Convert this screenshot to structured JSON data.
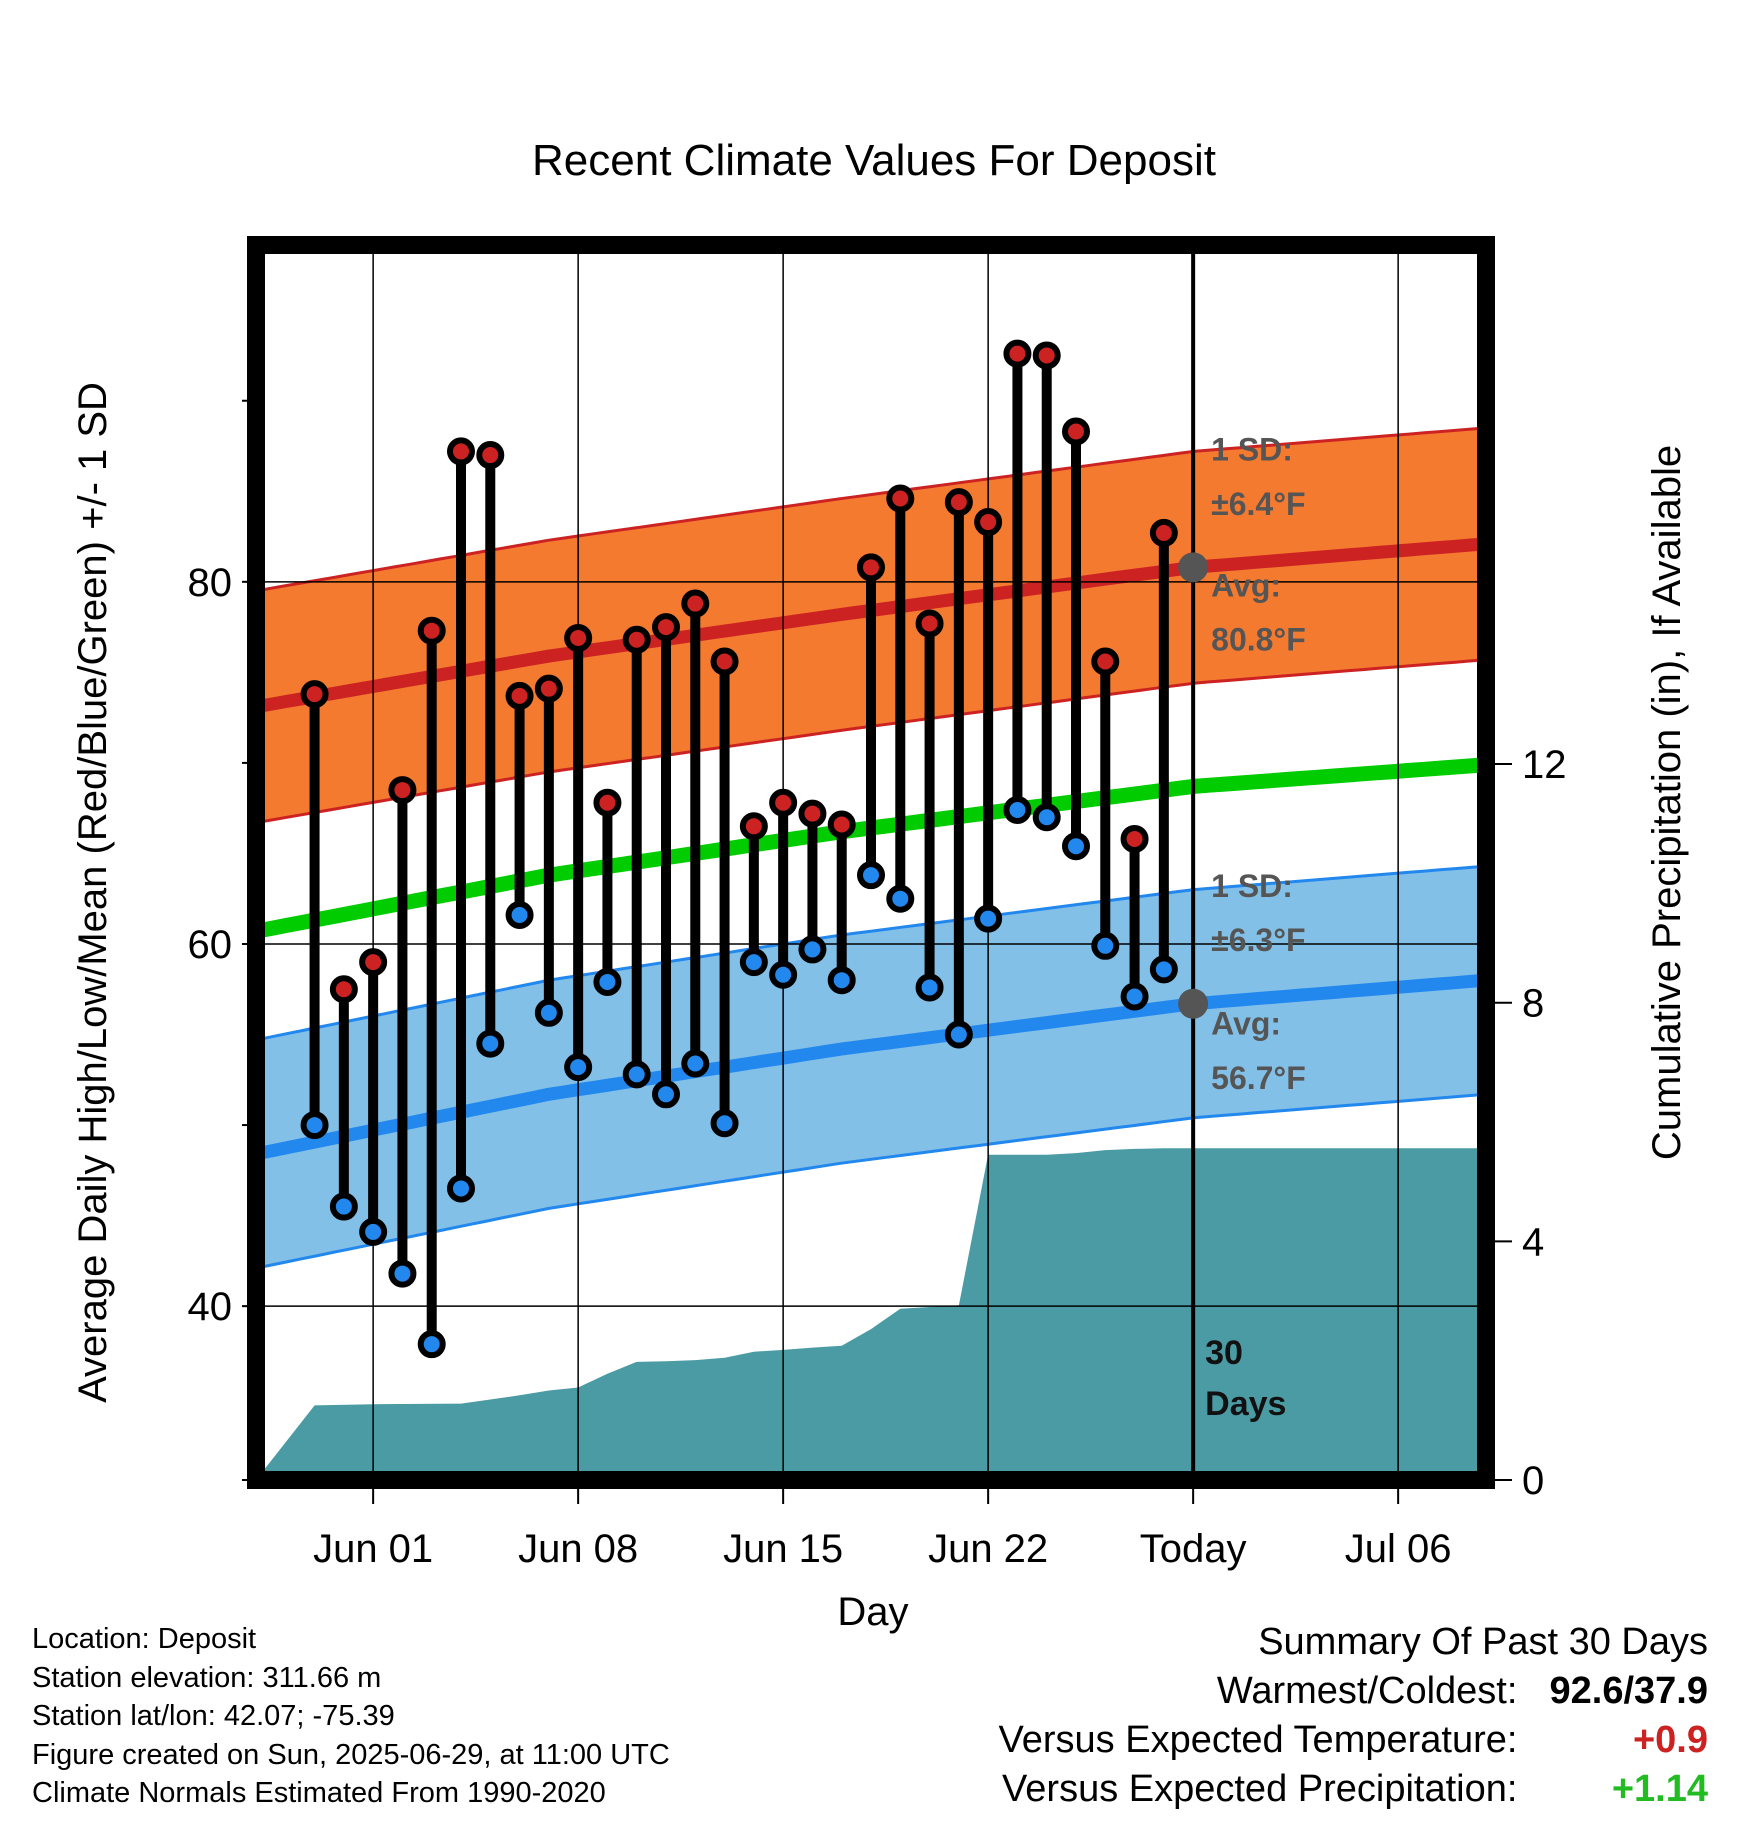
{
  "chart_data": {
    "type": "line",
    "title": "Recent Climate Values For Deposit",
    "xlabel": "Day",
    "ylabel": "Average Daily High/Low/Mean (Red/Blue/Green) +/- 1 SD",
    "y2label": "Cumulative Precipitation (in), If Available",
    "x_tick_labels": [
      "Jun 01",
      "Jun 08",
      "Jun 15",
      "Jun 22",
      "Today",
      "Jul 06"
    ],
    "y_ticks": [
      "40",
      "60",
      "80"
    ],
    "y2_ticks": [
      "0",
      "4",
      "8",
      "12"
    ],
    "ylim": [
      30.4,
      98.6
    ],
    "y2lim": [
      0,
      20.7
    ],
    "xlim": [
      "May 28",
      "Jul 09"
    ],
    "days": [
      "May 30",
      "May 31",
      "Jun 01",
      "Jun 02",
      "Jun 03",
      "Jun 04",
      "Jun 05",
      "Jun 06",
      "Jun 07",
      "Jun 08",
      "Jun 09",
      "Jun 10",
      "Jun 11",
      "Jun 12",
      "Jun 13",
      "Jun 14",
      "Jun 15",
      "Jun 16",
      "Jun 17",
      "Jun 18",
      "Jun 19",
      "Jun 20",
      "Jun 21",
      "Jun 22",
      "Jun 23",
      "Jun 24",
      "Jun 25",
      "Jun 26",
      "Jun 27",
      "Jun 28"
    ],
    "daily_high": [
      73.8,
      57.5,
      59.0,
      68.5,
      77.3,
      87.2,
      87.0,
      73.7,
      74.1,
      76.9,
      67.8,
      76.8,
      77.5,
      78.8,
      75.6,
      66.5,
      67.8,
      67.2,
      66.6,
      80.8,
      84.6,
      77.7,
      84.4,
      83.3,
      92.6,
      92.5,
      88.3,
      75.6,
      65.8,
      82.7
    ],
    "daily_low": [
      50.0,
      45.5,
      44.1,
      41.8,
      37.9,
      46.5,
      54.5,
      61.6,
      56.2,
      53.2,
      57.9,
      52.8,
      51.7,
      53.4,
      50.1,
      59.0,
      58.3,
      59.7,
      58.0,
      63.8,
      62.5,
      57.6,
      55.0,
      61.4,
      67.4,
      67.0,
      65.4,
      59.9,
      57.1,
      58.6
    ],
    "normal_band_days": [
      "May 28",
      "Jun 07",
      "Jun 17",
      "Jun 29",
      "Jul 09"
    ],
    "normal_high_avg": [
      73.1,
      75.9,
      78.2,
      80.8,
      82.1
    ],
    "normal_low_avg": [
      48.4,
      51.7,
      54.2,
      56.7,
      58.0
    ],
    "normal_mean": [
      60.7,
      63.8,
      66.2,
      68.7,
      69.9
    ],
    "sd_high": 6.4,
    "sd_low": 6.3,
    "precip_days": [
      "May 28",
      "May 30",
      "Jun 01",
      "Jun 04",
      "Jun 05",
      "Jun 06",
      "Jun 07",
      "Jun 08",
      "Jun 09",
      "Jun 10",
      "Jun 11",
      "Jun 12",
      "Jun 13",
      "Jun 14",
      "Jun 15",
      "Jun 16",
      "Jun 17",
      "Jun 18",
      "Jun 19",
      "Jun 20",
      "Jun 21",
      "Jun 22",
      "Jun 23",
      "Jun 24",
      "Jun 25",
      "Jun 26",
      "Jun 27",
      "Jun 28",
      "Jun 29",
      "Jul 09"
    ],
    "cumulative_precip": [
      0,
      1.25,
      1.27,
      1.28,
      1.35,
      1.42,
      1.5,
      1.55,
      1.78,
      1.98,
      1.99,
      2.01,
      2.05,
      2.15,
      2.18,
      2.22,
      2.25,
      2.53,
      2.87,
      2.9,
      2.93,
      5.45,
      5.45,
      5.45,
      5.48,
      5.53,
      5.55,
      5.56,
      5.56,
      5.56
    ],
    "series": [
      {
        "name": "Daily High",
        "color": "#cc2222"
      },
      {
        "name": "Daily Low",
        "color": "#2288ee"
      },
      {
        "name": "Mean",
        "color": "#00cc00"
      }
    ],
    "annotations": {
      "high_sd_label": "1 SD:",
      "high_sd_value": "±6.4°F",
      "high_avg_label": "Avg:",
      "high_avg_value": "80.8°F",
      "low_sd_label": "1 SD:",
      "low_sd_value": "±6.3°F",
      "low_avg_label": "Avg:",
      "low_avg_value": "56.7°F",
      "days_line1": "30",
      "days_line2": "Days"
    },
    "colors": {
      "high_band": "#f47a30",
      "high_line": "#cc2222",
      "low_band": "#82c0e8",
      "low_line": "#2288ee",
      "mean_line": "#00cc00",
      "precip_fill": "#4a9ba4"
    },
    "grid": true
  },
  "footer": {
    "location": "Location: Deposit",
    "elevation": "Station elevation: 311.66 m",
    "latlon": "Station lat/lon: 42.07; -75.39",
    "created": "Figure created on Sun, 2025-06-29, at 11:00 UTC",
    "normals": "Climate Normals Estimated From 1990-2020"
  },
  "summary": {
    "title": "Summary Of Past 30 Days",
    "warm_label": "Warmest/Coldest:",
    "warm_value": "92.6/37.9",
    "temp_label": "Versus Expected Temperature:",
    "temp_value": "+0.9",
    "precip_label": "Versus Expected Precipitation:",
    "precip_value": "+1.14"
  }
}
